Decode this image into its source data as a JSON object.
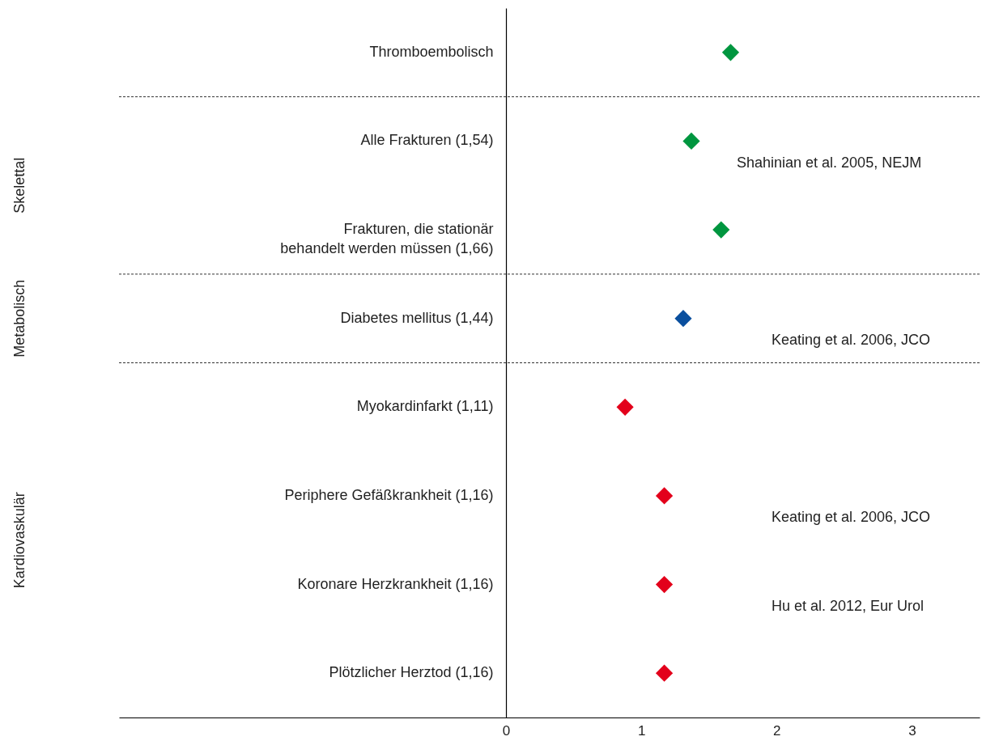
{
  "chart_data": {
    "type": "scatter",
    "marker": "diamond",
    "orientation": "horizontal",
    "categories": [
      "Thromboembolisch",
      "Alle Frakturen (1,54)",
      "Frakturen, die stationär\nbehandelt werden müssen (1,66)",
      "Diabetes mellitus (1,44)",
      "Myokardinfarkt (1,11)",
      "Periphere Gefäßkrankheit (1,16)",
      "Koronare Herzkrankheit (1,16)",
      "Plötzlicher Herztod (1,16)"
    ],
    "values": [
      1.66,
      1.37,
      1.59,
      1.31,
      0.88,
      1.17,
      1.17,
      1.17
    ],
    "colors": [
      "#00963f",
      "#00963f",
      "#00963f",
      "#0a4f9e",
      "#e3001b",
      "#e3001b",
      "#e3001b",
      "#e3001b"
    ],
    "xlim": [
      -2.86,
      3.5
    ],
    "xticks": [
      0,
      1,
      2,
      3
    ],
    "annotations": [
      "Skelettal",
      "Metabolisch",
      "Kardiovaskulär",
      "Shahinian et al. 2005, NEJM",
      "Keating et al. 2006, JCO",
      "Keating et al. 2006, JCO",
      "Hu et al. 2012, Eur Urol"
    ]
  }
}
